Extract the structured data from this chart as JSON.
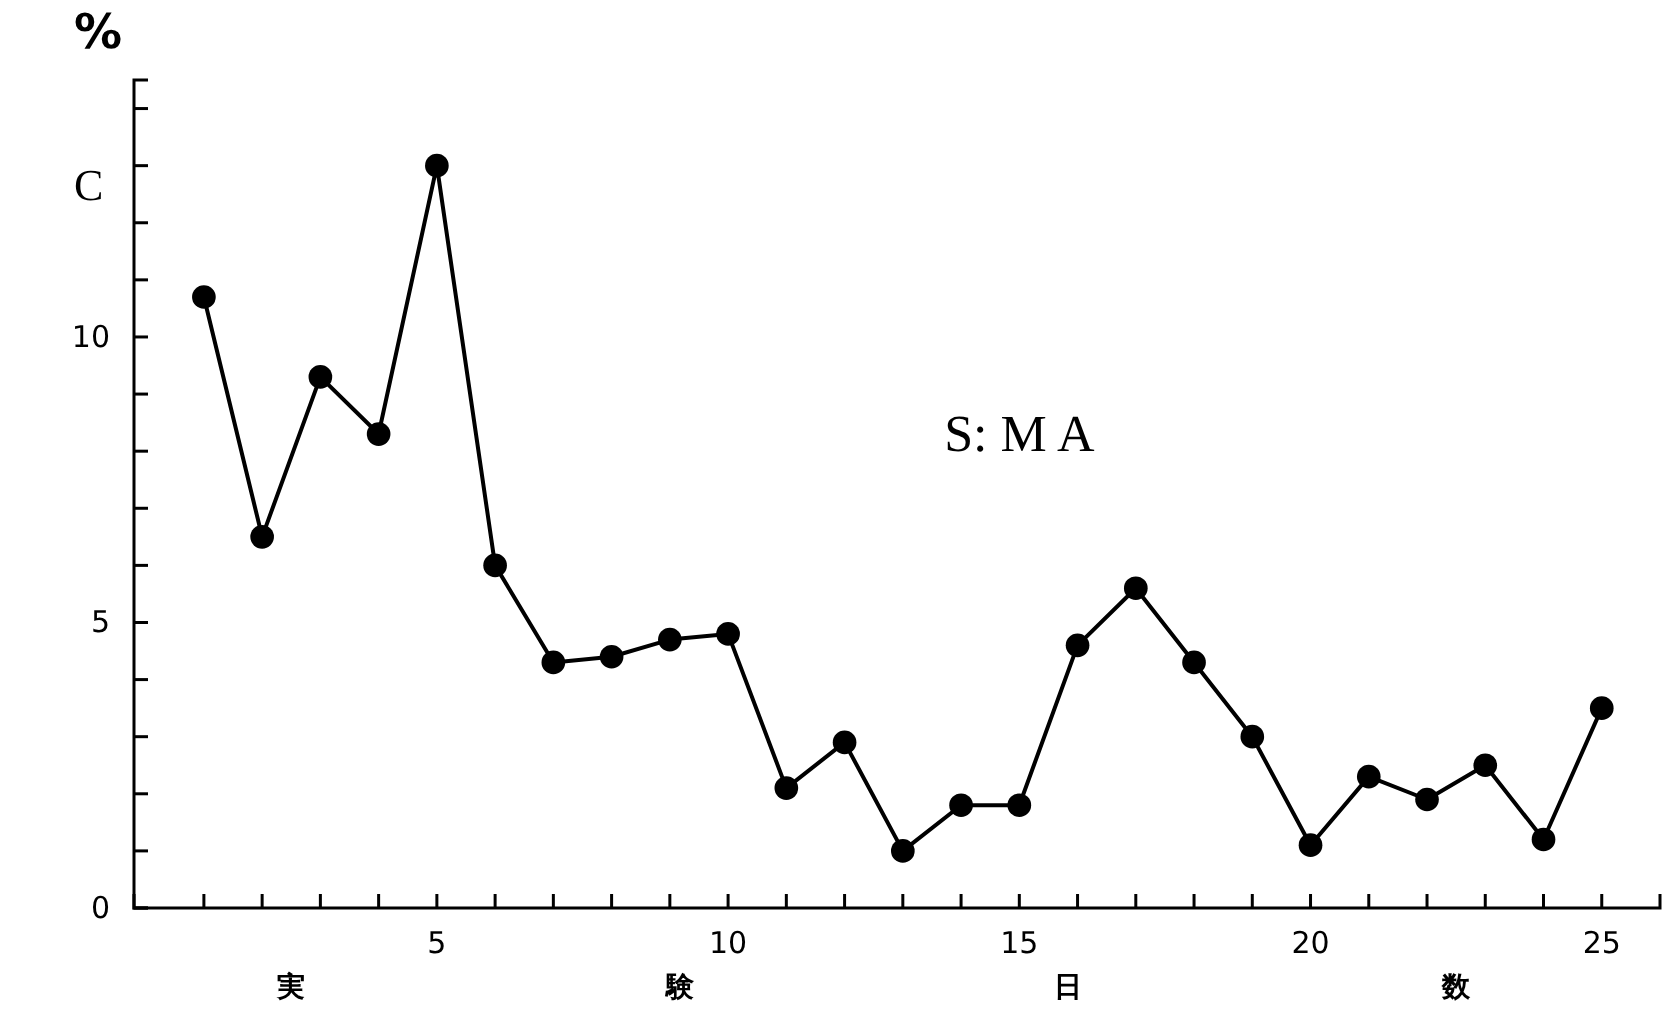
{
  "chart_data": {
    "type": "line",
    "ylabel": "%",
    "xlabel": "実験日数",
    "annotations": [
      "C",
      "S: M A"
    ],
    "x": [
      1,
      2,
      3,
      4,
      5,
      6,
      7,
      8,
      9,
      10,
      11,
      12,
      13,
      14,
      15,
      16,
      17,
      18,
      19,
      20,
      21,
      22,
      23,
      24,
      25
    ],
    "series": [
      {
        "color": "#000000",
        "values": [
          10.7,
          6.5,
          9.3,
          8.3,
          13.0,
          6.0,
          4.3,
          4.4,
          4.7,
          4.8,
          2.1,
          2.9,
          1.0,
          1.8,
          1.8,
          4.6,
          5.6,
          4.3,
          3.0,
          1.1,
          2.3,
          1.9,
          2.5,
          1.2,
          3.5
        ]
      }
    ],
    "xlim": [
      -0.2,
      26
    ],
    "ylim": [
      0,
      14.5
    ],
    "xticks": [
      {
        "value": 1,
        "label": null
      },
      {
        "value": 2,
        "label": null
      },
      {
        "value": 3,
        "label": null
      },
      {
        "value": 4,
        "label": null
      },
      5,
      {
        "value": 6,
        "label": null
      },
      {
        "value": 7,
        "label": null
      },
      {
        "value": 8,
        "label": null
      },
      {
        "value": 9,
        "label": null
      },
      10,
      {
        "value": 11,
        "label": null
      },
      {
        "value": 12,
        "label": null
      },
      {
        "value": 13,
        "label": null
      },
      {
        "value": 14,
        "label": null
      },
      15,
      {
        "value": 16,
        "label": null
      },
      {
        "value": 17,
        "label": null
      },
      {
        "value": 18,
        "label": null
      },
      {
        "value": 19,
        "label": null
      },
      20,
      {
        "value": 21,
        "label": null
      },
      {
        "value": 22,
        "label": null
      },
      {
        "value": 23,
        "label": null
      },
      {
        "value": 24,
        "label": null
      },
      25
    ],
    "yticks": [
      0,
      {
        "value": 1,
        "label": null
      },
      {
        "value": 2,
        "label": null
      },
      {
        "value": 3,
        "label": null
      },
      {
        "value": 4,
        "label": null
      },
      5,
      {
        "value": 6,
        "label": null
      },
      {
        "value": 7,
        "label": null
      },
      {
        "value": 8,
        "label": null
      },
      {
        "value": 9,
        "label": null
      },
      10,
      {
        "value": 11,
        "label": null
      },
      {
        "value": 12,
        "label": null
      },
      {
        "value": 13,
        "label": null
      },
      {
        "value": 14,
        "label": null
      }
    ],
    "grid": false,
    "marker": "circle",
    "line_style": "solid"
  }
}
